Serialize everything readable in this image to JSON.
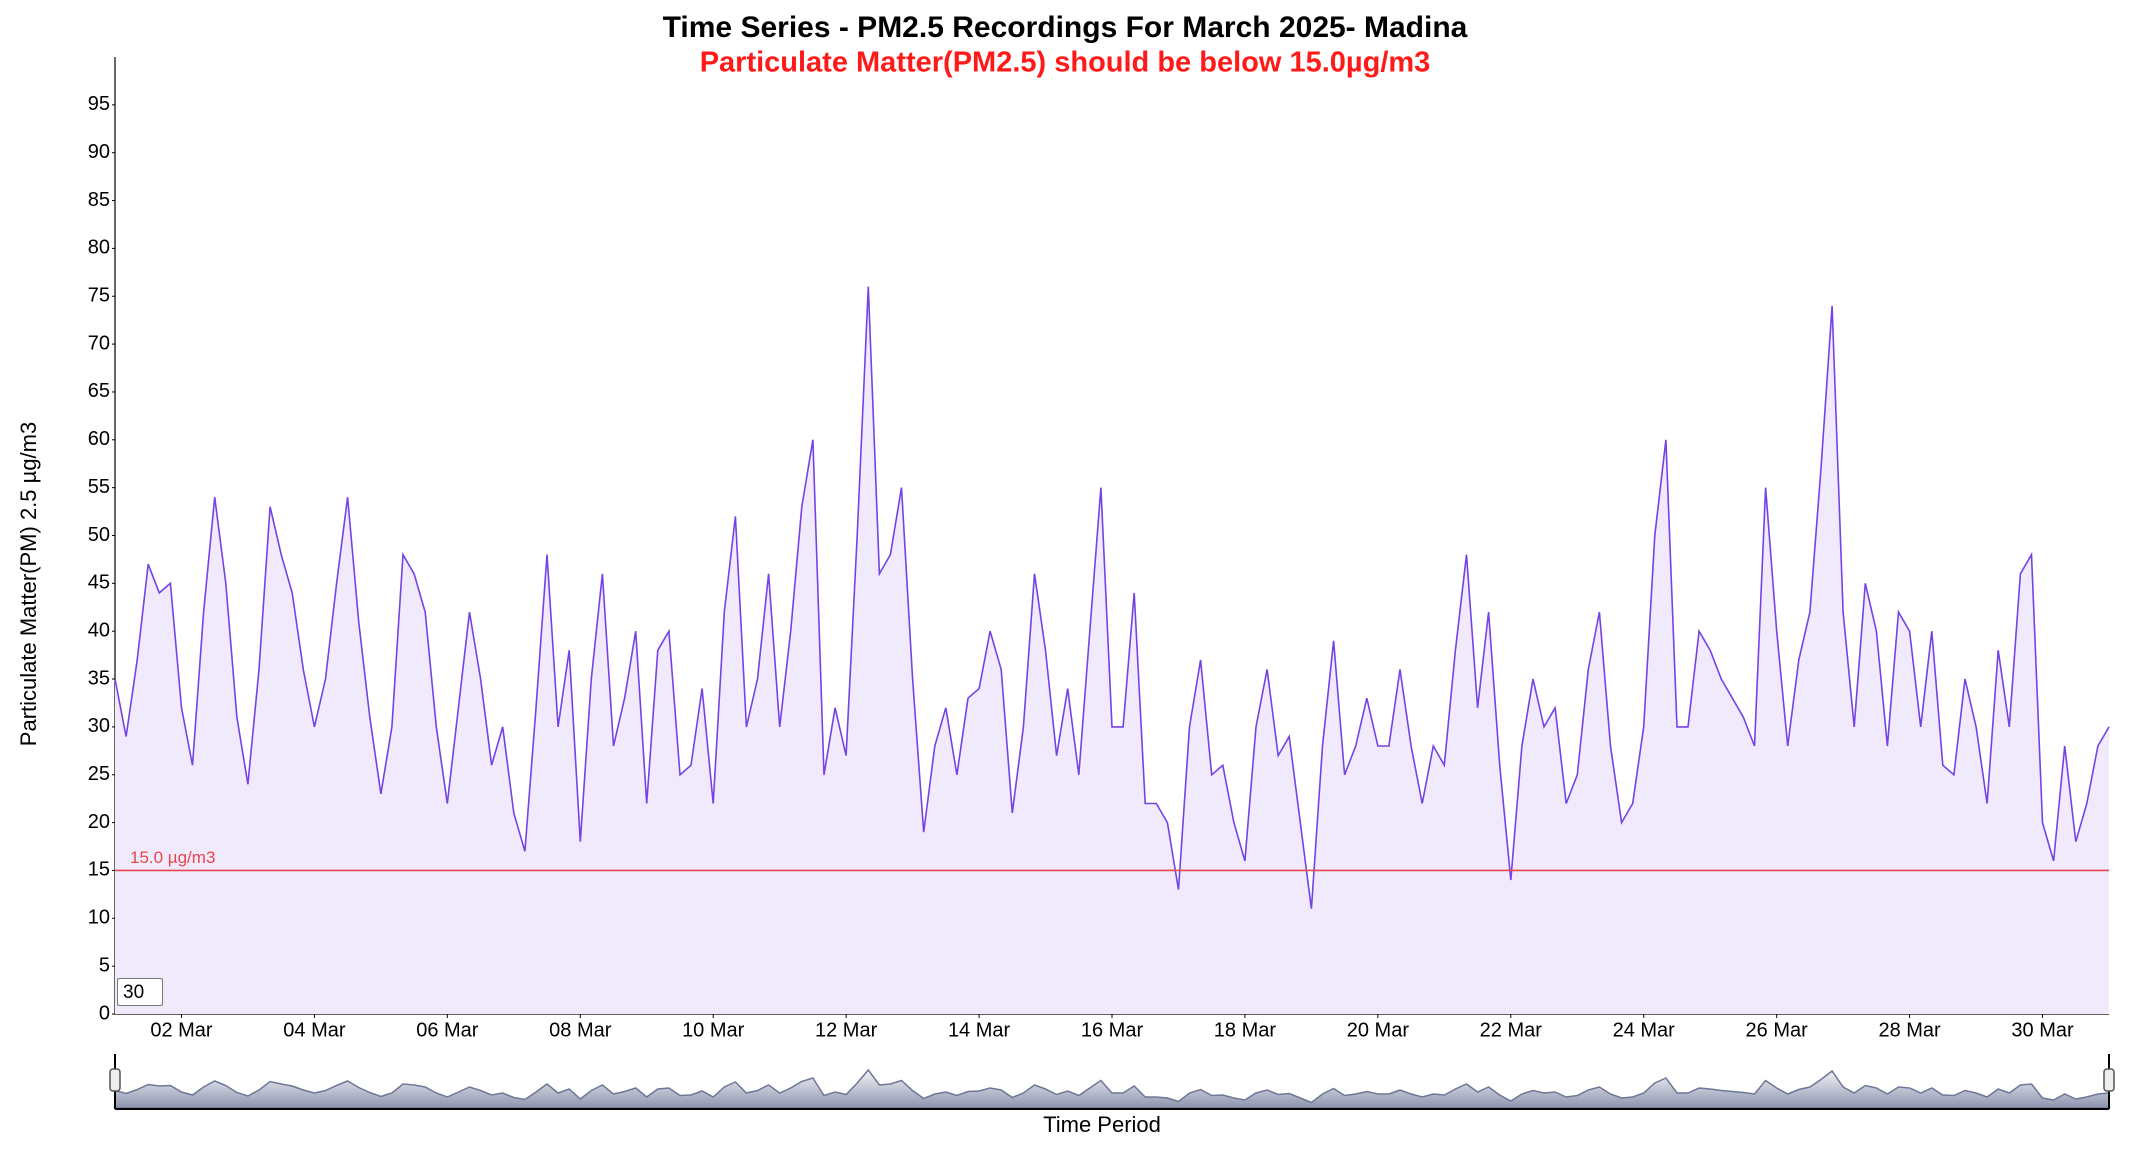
{
  "chart_data": {
    "type": "line",
    "title": "Time Series - PM2.5 Recordings For March 2025- Madina",
    "subtitle": "Particulate Matter(PM2.5) should be below 15.0µg/m3",
    "y_label": "Particulate Matter(PM) 2.5 µg/m3",
    "x_label": "Time Period",
    "rolling_period": 30,
    "threshold": {
      "value": 15,
      "label": "15.0 µg/m3",
      "color": "#e8474c"
    },
    "xlim": [
      "2025-03-01T00:00",
      "2025-03-31T00:00"
    ],
    "xticks": [
      {
        "value": "2025-03-02T00:00",
        "label": "02 Mar"
      },
      {
        "value": "2025-03-04T00:00",
        "label": "04 Mar"
      },
      {
        "value": "2025-03-06T00:00",
        "label": "06 Mar"
      },
      {
        "value": "2025-03-08T00:00",
        "label": "08 Mar"
      },
      {
        "value": "2025-03-10T00:00",
        "label": "10 Mar"
      },
      {
        "value": "2025-03-12T00:00",
        "label": "12 Mar"
      },
      {
        "value": "2025-03-14T00:00",
        "label": "14 Mar"
      },
      {
        "value": "2025-03-16T00:00",
        "label": "16 Mar"
      },
      {
        "value": "2025-03-18T00:00",
        "label": "18 Mar"
      },
      {
        "value": "2025-03-20T00:00",
        "label": "20 Mar"
      },
      {
        "value": "2025-03-22T00:00",
        "label": "22 Mar"
      },
      {
        "value": "2025-03-24T00:00",
        "label": "24 Mar"
      },
      {
        "value": "2025-03-26T00:00",
        "label": "26 Mar"
      },
      {
        "value": "2025-03-28T00:00",
        "label": "28 Mar"
      },
      {
        "value": "2025-03-30T00:00",
        "label": "30 Mar"
      }
    ],
    "ylim": [
      0,
      100
    ],
    "yticks": [
      0,
      5,
      10,
      15,
      20,
      25,
      30,
      35,
      40,
      45,
      50,
      55,
      60,
      65,
      70,
      75,
      80,
      85,
      90,
      95
    ],
    "grid": false,
    "x": [
      "2025-03-01T00:00",
      "2025-03-01T04:00",
      "2025-03-01T08:00",
      "2025-03-01T12:00",
      "2025-03-01T16:00",
      "2025-03-01T20:00",
      "2025-03-02T00:00",
      "2025-03-02T04:00",
      "2025-03-02T08:00",
      "2025-03-02T12:00",
      "2025-03-02T16:00",
      "2025-03-02T20:00",
      "2025-03-03T00:00",
      "2025-03-03T04:00",
      "2025-03-03T08:00",
      "2025-03-03T12:00",
      "2025-03-03T16:00",
      "2025-03-03T20:00",
      "2025-03-04T00:00",
      "2025-03-04T04:00",
      "2025-03-04T08:00",
      "2025-03-04T12:00",
      "2025-03-04T16:00",
      "2025-03-04T20:00",
      "2025-03-05T00:00",
      "2025-03-05T04:00",
      "2025-03-05T08:00",
      "2025-03-05T12:00",
      "2025-03-05T16:00",
      "2025-03-05T20:00",
      "2025-03-06T00:00",
      "2025-03-06T04:00",
      "2025-03-06T08:00",
      "2025-03-06T12:00",
      "2025-03-06T16:00",
      "2025-03-06T20:00",
      "2025-03-07T00:00",
      "2025-03-07T04:00",
      "2025-03-07T08:00",
      "2025-03-07T12:00",
      "2025-03-07T16:00",
      "2025-03-07T20:00",
      "2025-03-08T00:00",
      "2025-03-08T04:00",
      "2025-03-08T08:00",
      "2025-03-08T12:00",
      "2025-03-08T16:00",
      "2025-03-08T20:00",
      "2025-03-09T00:00",
      "2025-03-09T04:00",
      "2025-03-09T08:00",
      "2025-03-09T12:00",
      "2025-03-09T16:00",
      "2025-03-09T20:00",
      "2025-03-10T00:00",
      "2025-03-10T04:00",
      "2025-03-10T08:00",
      "2025-03-10T12:00",
      "2025-03-10T16:00",
      "2025-03-10T20:00",
      "2025-03-11T00:00",
      "2025-03-11T04:00",
      "2025-03-11T08:00",
      "2025-03-11T12:00",
      "2025-03-11T16:00",
      "2025-03-11T20:00",
      "2025-03-12T00:00",
      "2025-03-12T04:00",
      "2025-03-12T08:00",
      "2025-03-12T12:00",
      "2025-03-12T16:00",
      "2025-03-12T20:00",
      "2025-03-13T00:00",
      "2025-03-13T04:00",
      "2025-03-13T08:00",
      "2025-03-13T12:00",
      "2025-03-13T16:00",
      "2025-03-13T20:00",
      "2025-03-14T00:00",
      "2025-03-14T04:00",
      "2025-03-14T08:00",
      "2025-03-14T12:00",
      "2025-03-14T16:00",
      "2025-03-14T20:00",
      "2025-03-15T00:00",
      "2025-03-15T04:00",
      "2025-03-15T08:00",
      "2025-03-15T12:00",
      "2025-03-15T16:00",
      "2025-03-15T20:00",
      "2025-03-16T00:00",
      "2025-03-16T04:00",
      "2025-03-16T08:00",
      "2025-03-16T12:00",
      "2025-03-16T16:00",
      "2025-03-16T20:00",
      "2025-03-17T00:00",
      "2025-03-17T04:00",
      "2025-03-17T08:00",
      "2025-03-17T12:00",
      "2025-03-17T16:00",
      "2025-03-17T20:00",
      "2025-03-18T00:00",
      "2025-03-18T04:00",
      "2025-03-18T08:00",
      "2025-03-18T12:00",
      "2025-03-18T16:00",
      "2025-03-18T20:00",
      "2025-03-19T00:00",
      "2025-03-19T04:00",
      "2025-03-19T08:00",
      "2025-03-19T12:00",
      "2025-03-19T16:00",
      "2025-03-19T20:00",
      "2025-03-20T00:00",
      "2025-03-20T04:00",
      "2025-03-20T08:00",
      "2025-03-20T12:00",
      "2025-03-20T16:00",
      "2025-03-20T20:00",
      "2025-03-21T00:00",
      "2025-03-21T04:00",
      "2025-03-21T08:00",
      "2025-03-21T12:00",
      "2025-03-21T16:00",
      "2025-03-21T20:00",
      "2025-03-22T00:00",
      "2025-03-22T04:00",
      "2025-03-22T08:00",
      "2025-03-22T12:00",
      "2025-03-22T16:00",
      "2025-03-22T20:00",
      "2025-03-23T00:00",
      "2025-03-23T04:00",
      "2025-03-23T08:00",
      "2025-03-23T12:00",
      "2025-03-23T16:00",
      "2025-03-23T20:00",
      "2025-03-24T00:00",
      "2025-03-24T04:00",
      "2025-03-24T08:00",
      "2025-03-24T12:00",
      "2025-03-24T16:00",
      "2025-03-24T20:00",
      "2025-03-25T00:00",
      "2025-03-25T04:00",
      "2025-03-25T08:00",
      "2025-03-25T12:00",
      "2025-03-25T16:00",
      "2025-03-25T20:00",
      "2025-03-26T00:00",
      "2025-03-26T04:00",
      "2025-03-26T08:00",
      "2025-03-26T12:00",
      "2025-03-26T16:00",
      "2025-03-26T20:00",
      "2025-03-27T00:00",
      "2025-03-27T04:00",
      "2025-03-27T08:00",
      "2025-03-27T12:00",
      "2025-03-27T16:00",
      "2025-03-27T20:00",
      "2025-03-28T00:00",
      "2025-03-28T04:00",
      "2025-03-28T08:00",
      "2025-03-28T12:00",
      "2025-03-28T16:00",
      "2025-03-28T20:00",
      "2025-03-29T00:00",
      "2025-03-29T04:00",
      "2025-03-29T08:00",
      "2025-03-29T12:00",
      "2025-03-29T16:00",
      "2025-03-29T20:00",
      "2025-03-30T00:00",
      "2025-03-30T04:00",
      "2025-03-30T08:00",
      "2025-03-30T12:00",
      "2025-03-30T16:00",
      "2025-03-30T20:00",
      "2025-03-31T00:00"
    ],
    "series": [
      {
        "name": "PM2.5",
        "color": "#7443e6",
        "fill": "#f1eafd",
        "values": [
          35,
          29,
          37,
          47,
          44,
          45,
          32,
          26,
          42,
          54,
          45,
          31,
          24,
          36,
          53,
          48,
          44,
          36,
          30,
          35,
          45,
          54,
          41,
          31,
          23,
          30,
          48,
          46,
          42,
          30,
          22,
          32,
          42,
          35,
          26,
          30,
          21,
          17,
          32,
          48,
          30,
          38,
          18,
          35,
          46,
          28,
          33,
          40,
          22,
          38,
          40,
          25,
          26,
          34,
          22,
          42,
          52,
          30,
          35,
          46,
          30,
          40,
          53,
          60,
          25,
          32,
          27,
          50,
          76,
          46,
          48,
          55,
          35,
          19,
          28,
          32,
          25,
          33,
          34,
          40,
          36,
          21,
          30,
          46,
          38,
          27,
          34,
          25,
          40,
          55,
          30,
          30,
          44,
          22,
          22,
          20,
          13,
          30,
          37,
          25,
          26,
          20,
          16,
          30,
          36,
          27,
          29,
          20,
          11,
          28,
          39,
          25,
          28,
          33,
          28,
          28,
          36,
          28,
          22,
          28,
          26,
          38,
          48,
          32,
          42,
          26,
          14,
          28,
          35,
          30,
          32,
          22,
          25,
          36,
          42,
          28,
          20,
          22,
          30,
          50,
          60,
          30,
          30,
          40,
          38,
          35,
          33,
          31,
          28,
          55,
          40,
          28,
          37,
          42,
          57,
          74,
          42,
          30,
          45,
          40,
          28,
          42,
          40,
          30,
          40,
          26,
          25,
          35,
          30,
          22,
          38,
          30,
          46,
          48,
          20,
          16,
          28,
          18,
          22,
          28,
          30
        ]
      }
    ]
  }
}
